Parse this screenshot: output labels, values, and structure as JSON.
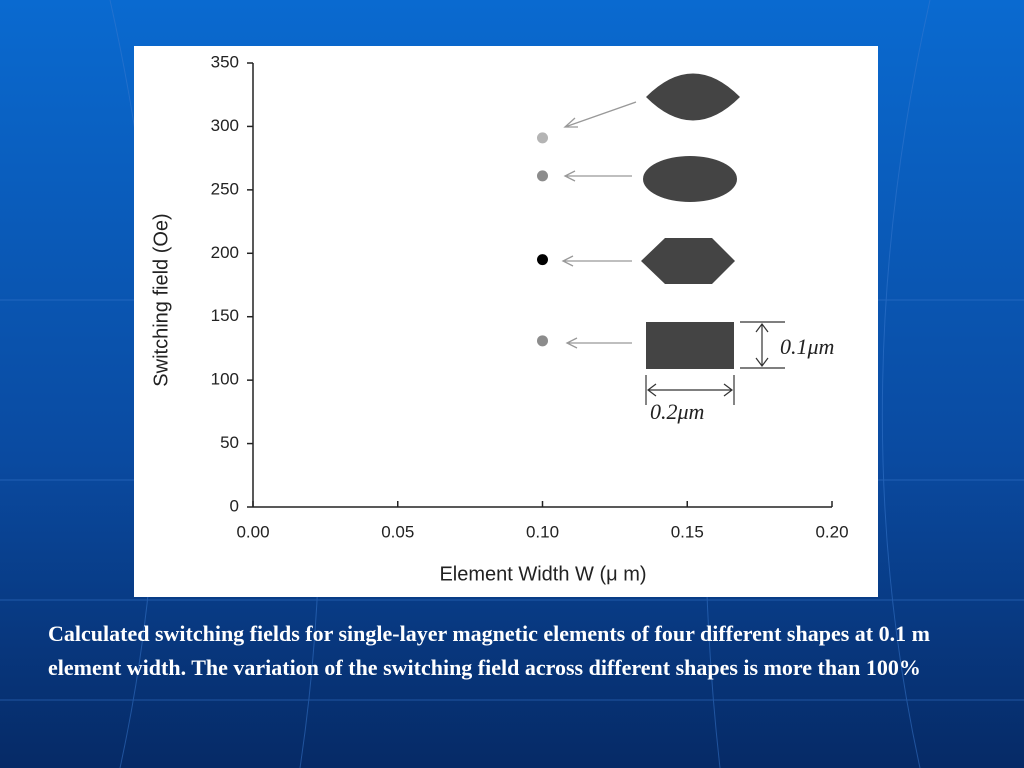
{
  "chart_data": {
    "type": "scatter",
    "x_label": "Element Width W  (μ m)",
    "y_label": "Switching  field (Oe)",
    "x": [
      0.1,
      0.1,
      0.1,
      0.1
    ],
    "values": [
      291,
      261,
      195,
      131
    ],
    "colors": [
      "#b4b4b4",
      "#8c8c8c",
      "#000000",
      "#8c8c8c"
    ],
    "xlim": [
      0,
      0.2
    ],
    "xticks": [
      {
        "value": 0,
        "label": "0.00"
      },
      0.05,
      {
        "value": 0.1,
        "label": "0.10"
      },
      0.15,
      {
        "value": 0.2,
        "label": "0.20"
      }
    ],
    "ylim": [
      0,
      350
    ],
    "yticks": [
      0,
      50,
      100,
      150,
      200,
      250,
      300,
      350
    ],
    "annotations": [
      "0.1μm",
      "0.2μm"
    ]
  },
  "caption": "Calculated switching fields for single-layer magnetic elements of four different shapes at 0.1 m element width. The variation of the switching field across different shapes is more than 100%"
}
